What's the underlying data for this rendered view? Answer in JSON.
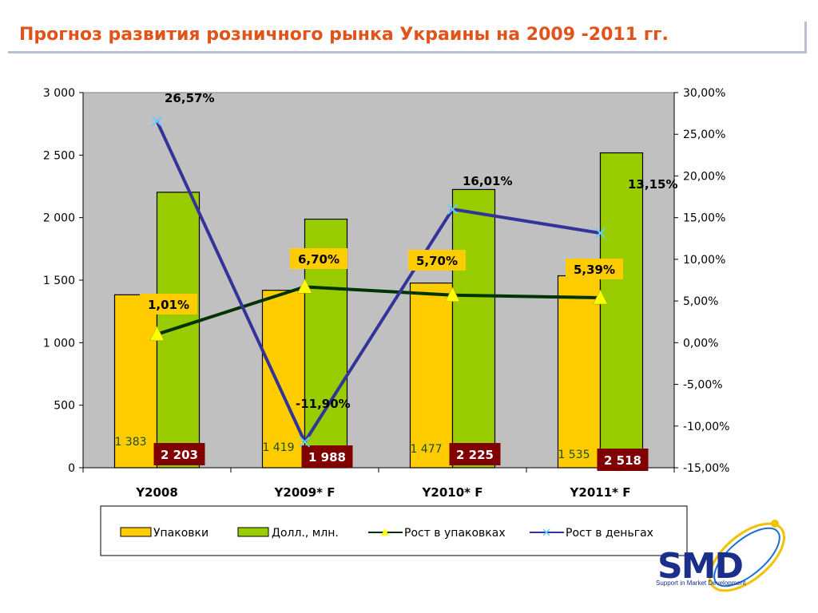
{
  "page": {
    "title": "Прогноз развития розничного рынка Украины на 2009 -2011 гг."
  },
  "chart_data": {
    "type": "bar",
    "categories": [
      "Y2008",
      "Y2009* F",
      "Y2010* F",
      "Y2011* F"
    ],
    "y_left": {
      "min": 0,
      "max": 3000,
      "step": 500,
      "tick_labels": [
        "0",
        "500",
        "1 000",
        "1 500",
        "2 000",
        "2 500",
        "3 000"
      ]
    },
    "y_right": {
      "min": -15,
      "max": 30,
      "step": 5,
      "tick_labels": [
        "-15,00%",
        "-10,00%",
        "-5,00%",
        "0,00%",
        "5,00%",
        "10,00%",
        "15,00%",
        "20,00%",
        "25,00%",
        "30,00%"
      ]
    },
    "series": [
      {
        "name": "Упаковки",
        "kind": "bar",
        "axis": "left",
        "color": "#ffcc00",
        "values": [
          1383,
          1419,
          1477,
          1535
        ],
        "labels": [
          "1 383",
          "1 419",
          "1 477",
          "1 535"
        ]
      },
      {
        "name": "Долл., млн.",
        "kind": "bar",
        "axis": "left",
        "color": "#99cc00",
        "values": [
          2203,
          1988,
          2225,
          2518
        ],
        "labels": [
          "2 203",
          "1 988",
          "2 225",
          "2 518"
        ]
      },
      {
        "name": "Рост в упаковках",
        "kind": "line",
        "axis": "right",
        "color": "#003300",
        "marker_color": "#ffff00",
        "values": [
          1.01,
          6.7,
          5.7,
          5.39
        ],
        "labels": [
          "1,01%",
          "6,70%",
          "5,70%",
          "5,39%"
        ]
      },
      {
        "name": "Рост в деньгах",
        "kind": "line",
        "axis": "right",
        "color": "#333399",
        "marker_color": "#66ccff",
        "values": [
          26.57,
          -11.9,
          16.01,
          13.15
        ],
        "labels": [
          "26,57%",
          "-11,90%",
          "16,01%",
          "13,15%"
        ]
      }
    ],
    "colors": {
      "plot_bg": "#c0c0c0",
      "value_box": "#800000",
      "pct_box": "#ffcc00"
    },
    "legend_position": "bottom",
    "grid": false
  },
  "logo": {
    "text": "SMD",
    "subtitle": "Support in Market Development"
  }
}
